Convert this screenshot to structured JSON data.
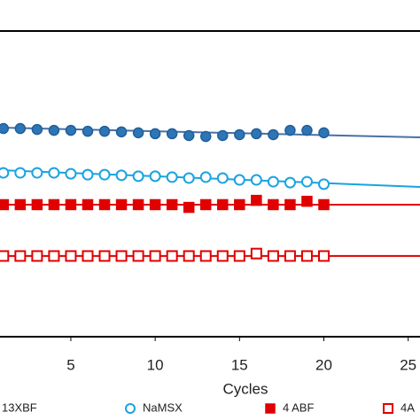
{
  "chart_data": {
    "type": "scatter",
    "x_label": "Cycles",
    "xlim": [
      0.8,
      25.7
    ],
    "ylim": [
      0,
      100
    ],
    "xticks": [
      5,
      10,
      15,
      20,
      25
    ],
    "x": [
      1,
      2,
      3,
      4,
      5,
      6,
      7,
      8,
      9,
      10,
      11,
      12,
      13,
      14,
      15,
      16,
      17,
      18,
      19,
      20
    ],
    "series": [
      {
        "name": "13XBF",
        "color": "#2e75b6",
        "marker": "circle",
        "filled": true,
        "values": [
          68.1,
          68.1,
          67.8,
          67.5,
          67.5,
          67.2,
          67.2,
          67.0,
          66.7,
          66.4,
          66.4,
          65.8,
          65.5,
          65.8,
          66.1,
          66.4,
          66.1,
          67.5,
          67.5,
          66.7
        ],
        "fit": {
          "x": [
            0.8,
            25.7
          ],
          "y": [
            68.4,
            65.2
          ],
          "color": "#4a6fa5"
        }
      },
      {
        "name": "NaMSX",
        "color": "#1aa3e0",
        "marker": "circle",
        "filled": false,
        "values": [
          53.6,
          53.6,
          53.6,
          53.6,
          53.3,
          53.0,
          53.0,
          52.8,
          52.5,
          52.5,
          52.2,
          51.9,
          52.2,
          51.9,
          51.3,
          51.3,
          50.7,
          50.4,
          50.7,
          49.9
        ],
        "fit": {
          "x": [
            0.8,
            25.7
          ],
          "y": [
            54.5,
            49.0
          ],
          "color": "#1aa3e0"
        }
      },
      {
        "name": "4 ABF",
        "color": "#e00000",
        "marker": "square",
        "filled": true,
        "values": [
          43.2,
          43.2,
          43.2,
          43.2,
          43.2,
          43.2,
          43.2,
          43.2,
          43.2,
          43.2,
          43.2,
          42.3,
          43.2,
          43.2,
          43.2,
          44.6,
          43.2,
          43.2,
          44.3,
          43.2
        ],
        "fit": {
          "x": [
            0.8,
            25.7
          ],
          "y": [
            43.2,
            43.2
          ],
          "color": "#e00000"
        }
      },
      {
        "name": "4A",
        "color": "#e00000",
        "marker": "square",
        "filled": false,
        "values": [
          26.4,
          26.4,
          26.4,
          26.4,
          26.4,
          26.4,
          26.4,
          26.4,
          26.4,
          26.4,
          26.4,
          26.4,
          26.4,
          26.4,
          26.4,
          27.2,
          26.4,
          26.4,
          26.4,
          26.4
        ],
        "fit": {
          "x": [
            0.8,
            25.7
          ],
          "y": [
            26.4,
            26.4
          ],
          "color": "#e00000"
        }
      }
    ]
  }
}
